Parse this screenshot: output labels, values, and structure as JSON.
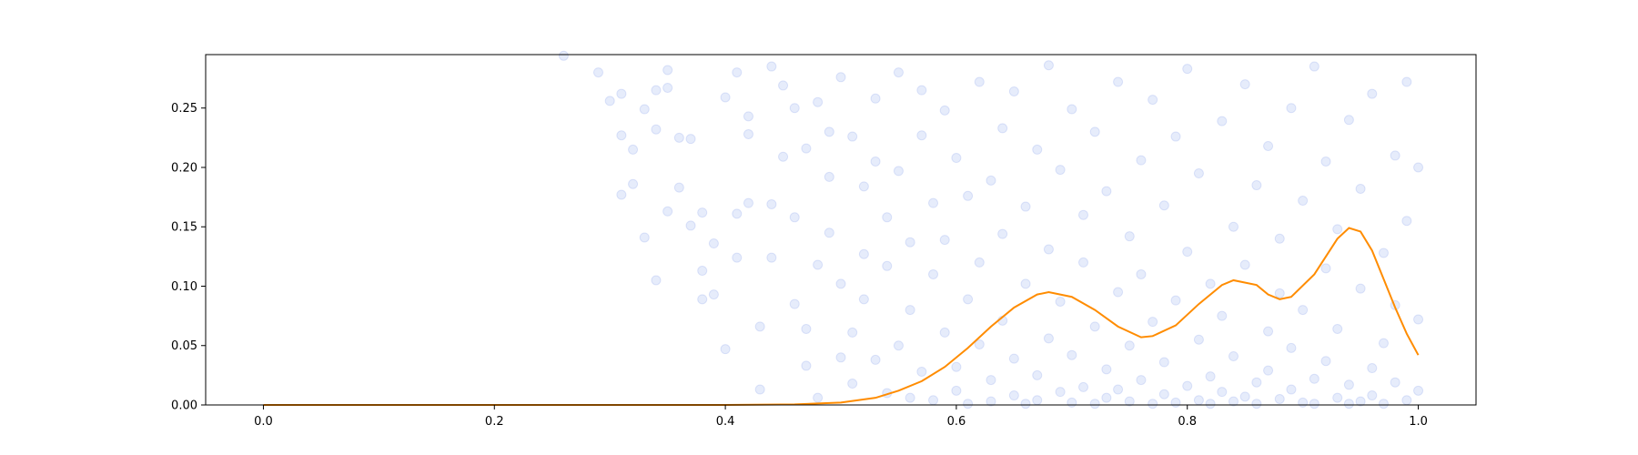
{
  "chart_data": {
    "type": "scatter",
    "xlim": [
      -0.05,
      1.05
    ],
    "ylim": [
      0,
      0.295
    ],
    "xticks": [
      0.0,
      0.2,
      0.4,
      0.6,
      0.8,
      1.0
    ],
    "xtick_labels": [
      "0.0",
      "0.2",
      "0.4",
      "0.6",
      "0.8",
      "1.0"
    ],
    "yticks": [
      0.0,
      0.05,
      0.1,
      0.15,
      0.2,
      0.25
    ],
    "ytick_labels": [
      "0.00",
      "0.05",
      "0.10",
      "0.15",
      "0.20",
      "0.25"
    ],
    "grid": false,
    "colors": {
      "scatter": "#4169e1",
      "line": "#ff8c00",
      "axes": "#000000"
    },
    "scatter_opacity": 0.13,
    "series": [
      {
        "type": "scatter",
        "points": [
          [
            0.26,
            0.294
          ],
          [
            0.29,
            0.28
          ],
          [
            0.3,
            0.256
          ],
          [
            0.31,
            0.262
          ],
          [
            0.31,
            0.177
          ],
          [
            0.31,
            0.227
          ],
          [
            0.32,
            0.215
          ],
          [
            0.32,
            0.186
          ],
          [
            0.33,
            0.141
          ],
          [
            0.33,
            0.249
          ],
          [
            0.34,
            0.232
          ],
          [
            0.34,
            0.265
          ],
          [
            0.34,
            0.105
          ],
          [
            0.35,
            0.267
          ],
          [
            0.35,
            0.163
          ],
          [
            0.35,
            0.282
          ],
          [
            0.36,
            0.225
          ],
          [
            0.36,
            0.183
          ],
          [
            0.37,
            0.151
          ],
          [
            0.37,
            0.224
          ],
          [
            0.38,
            0.162
          ],
          [
            0.38,
            0.113
          ],
          [
            0.38,
            0.089
          ],
          [
            0.39,
            0.093
          ],
          [
            0.39,
            0.136
          ],
          [
            0.4,
            0.047
          ],
          [
            0.4,
            0.259
          ],
          [
            0.41,
            0.124
          ],
          [
            0.41,
            0.161
          ],
          [
            0.41,
            0.28
          ],
          [
            0.42,
            0.17
          ],
          [
            0.42,
            0.243
          ],
          [
            0.42,
            0.228
          ],
          [
            0.43,
            0.013
          ],
          [
            0.43,
            0.066
          ],
          [
            0.44,
            0.124
          ],
          [
            0.44,
            0.285
          ],
          [
            0.44,
            0.169
          ],
          [
            0.45,
            0.269
          ],
          [
            0.45,
            0.209
          ],
          [
            0.46,
            0.085
          ],
          [
            0.46,
            0.25
          ],
          [
            0.46,
            0.158
          ],
          [
            0.47,
            0.033
          ],
          [
            0.47,
            0.064
          ],
          [
            0.47,
            0.216
          ],
          [
            0.48,
            0.255
          ],
          [
            0.48,
            0.118
          ],
          [
            0.48,
            0.006
          ],
          [
            0.49,
            0.145
          ],
          [
            0.49,
            0.23
          ],
          [
            0.49,
            0.192
          ],
          [
            0.5,
            0.102
          ],
          [
            0.5,
            0.04
          ],
          [
            0.5,
            0.276
          ],
          [
            0.51,
            0.061
          ],
          [
            0.51,
            0.018
          ],
          [
            0.51,
            0.226
          ],
          [
            0.52,
            0.127
          ],
          [
            0.52,
            0.184
          ],
          [
            0.52,
            0.089
          ],
          [
            0.53,
            0.205
          ],
          [
            0.53,
            0.038
          ],
          [
            0.53,
            0.258
          ],
          [
            0.54,
            0.01
          ],
          [
            0.54,
            0.158
          ],
          [
            0.54,
            0.117
          ],
          [
            0.55,
            0.28
          ],
          [
            0.55,
            0.05
          ],
          [
            0.55,
            0.197
          ],
          [
            0.56,
            0.08
          ],
          [
            0.56,
            0.006
          ],
          [
            0.56,
            0.137
          ],
          [
            0.57,
            0.227
          ],
          [
            0.57,
            0.028
          ],
          [
            0.57,
            0.265
          ],
          [
            0.58,
            0.11
          ],
          [
            0.58,
            0.17
          ],
          [
            0.58,
            0.004
          ],
          [
            0.59,
            0.061
          ],
          [
            0.59,
            0.248
          ],
          [
            0.59,
            0.139
          ],
          [
            0.6,
            0.012
          ],
          [
            0.6,
            0.208
          ],
          [
            0.6,
            0.032
          ],
          [
            0.61,
            0.176
          ],
          [
            0.61,
            0.089
          ],
          [
            0.61,
            0.001
          ],
          [
            0.62,
            0.272
          ],
          [
            0.62,
            0.051
          ],
          [
            0.62,
            0.12
          ],
          [
            0.63,
            0.021
          ],
          [
            0.63,
            0.189
          ],
          [
            0.63,
            0.003
          ],
          [
            0.64,
            0.233
          ],
          [
            0.64,
            0.071
          ],
          [
            0.64,
            0.144
          ],
          [
            0.65,
            0.008
          ],
          [
            0.65,
            0.039
          ],
          [
            0.65,
            0.264
          ],
          [
            0.66,
            0.102
          ],
          [
            0.66,
            0.001
          ],
          [
            0.66,
            0.167
          ],
          [
            0.67,
            0.025
          ],
          [
            0.67,
            0.215
          ],
          [
            0.67,
            0.004
          ],
          [
            0.68,
            0.056
          ],
          [
            0.68,
            0.131
          ],
          [
            0.68,
            0.286
          ],
          [
            0.69,
            0.011
          ],
          [
            0.69,
            0.087
          ],
          [
            0.69,
            0.198
          ],
          [
            0.7,
            0.002
          ],
          [
            0.7,
            0.042
          ],
          [
            0.7,
            0.249
          ],
          [
            0.71,
            0.12
          ],
          [
            0.71,
            0.015
          ],
          [
            0.71,
            0.16
          ],
          [
            0.72,
            0.001
          ],
          [
            0.72,
            0.066
          ],
          [
            0.72,
            0.23
          ],
          [
            0.73,
            0.03
          ],
          [
            0.73,
            0.18
          ],
          [
            0.73,
            0.006
          ],
          [
            0.74,
            0.095
          ],
          [
            0.74,
            0.272
          ],
          [
            0.74,
            0.013
          ],
          [
            0.75,
            0.142
          ],
          [
            0.75,
            0.003
          ],
          [
            0.75,
            0.05
          ],
          [
            0.76,
            0.206
          ],
          [
            0.76,
            0.021
          ],
          [
            0.76,
            0.11
          ],
          [
            0.77,
            0.001
          ],
          [
            0.77,
            0.257
          ],
          [
            0.77,
            0.07
          ],
          [
            0.78,
            0.009
          ],
          [
            0.78,
            0.168
          ],
          [
            0.78,
            0.036
          ],
          [
            0.79,
            0.226
          ],
          [
            0.79,
            0.002
          ],
          [
            0.79,
            0.088
          ],
          [
            0.8,
            0.129
          ],
          [
            0.8,
            0.016
          ],
          [
            0.8,
            0.283
          ],
          [
            0.81,
            0.004
          ],
          [
            0.81,
            0.055
          ],
          [
            0.81,
            0.195
          ],
          [
            0.82,
            0.024
          ],
          [
            0.82,
            0.102
          ],
          [
            0.82,
            0.001
          ],
          [
            0.83,
            0.239
          ],
          [
            0.83,
            0.075
          ],
          [
            0.83,
            0.011
          ],
          [
            0.84,
            0.15
          ],
          [
            0.84,
            0.003
          ],
          [
            0.84,
            0.041
          ],
          [
            0.85,
            0.27
          ],
          [
            0.85,
            0.118
          ],
          [
            0.85,
            0.007
          ],
          [
            0.86,
            0.019
          ],
          [
            0.86,
            0.185
          ],
          [
            0.86,
            0.001
          ],
          [
            0.87,
            0.062
          ],
          [
            0.87,
            0.218
          ],
          [
            0.87,
            0.029
          ],
          [
            0.88,
            0.005
          ],
          [
            0.88,
            0.14
          ],
          [
            0.88,
            0.094
          ],
          [
            0.89,
            0.25
          ],
          [
            0.89,
            0.013
          ],
          [
            0.89,
            0.048
          ],
          [
            0.9,
            0.002
          ],
          [
            0.9,
            0.172
          ],
          [
            0.9,
            0.08
          ],
          [
            0.91,
            0.022
          ],
          [
            0.91,
            0.285
          ],
          [
            0.91,
            0.001
          ],
          [
            0.92,
            0.115
          ],
          [
            0.92,
            0.037
          ],
          [
            0.92,
            0.205
          ],
          [
            0.93,
            0.006
          ],
          [
            0.93,
            0.148
          ],
          [
            0.93,
            0.064
          ],
          [
            0.94,
            0.001
          ],
          [
            0.94,
            0.24
          ],
          [
            0.94,
            0.017
          ],
          [
            0.95,
            0.098
          ],
          [
            0.95,
            0.003
          ],
          [
            0.95,
            0.182
          ],
          [
            0.96,
            0.031
          ],
          [
            0.96,
            0.262
          ],
          [
            0.96,
            0.008
          ],
          [
            0.97,
            0.128
          ],
          [
            0.97,
            0.052
          ],
          [
            0.97,
            0.001
          ],
          [
            0.98,
            0.21
          ],
          [
            0.98,
            0.019
          ],
          [
            0.98,
            0.084
          ],
          [
            0.99,
            0.004
          ],
          [
            0.99,
            0.155
          ],
          [
            0.99,
            0.272
          ],
          [
            1.0,
            0.072
          ],
          [
            1.0,
            0.012
          ],
          [
            1.0,
            0.2
          ]
        ]
      },
      {
        "type": "line",
        "points": [
          [
            0.0,
            0.0
          ],
          [
            0.4,
            0.0
          ],
          [
            0.46,
            0.0005
          ],
          [
            0.5,
            0.002
          ],
          [
            0.53,
            0.006
          ],
          [
            0.55,
            0.012
          ],
          [
            0.57,
            0.02
          ],
          [
            0.59,
            0.032
          ],
          [
            0.61,
            0.048
          ],
          [
            0.63,
            0.066
          ],
          [
            0.65,
            0.082
          ],
          [
            0.67,
            0.093
          ],
          [
            0.68,
            0.095
          ],
          [
            0.7,
            0.091
          ],
          [
            0.72,
            0.08
          ],
          [
            0.74,
            0.066
          ],
          [
            0.76,
            0.057
          ],
          [
            0.77,
            0.058
          ],
          [
            0.79,
            0.067
          ],
          [
            0.81,
            0.085
          ],
          [
            0.83,
            0.101
          ],
          [
            0.84,
            0.105
          ],
          [
            0.86,
            0.101
          ],
          [
            0.87,
            0.093
          ],
          [
            0.88,
            0.089
          ],
          [
            0.89,
            0.091
          ],
          [
            0.91,
            0.11
          ],
          [
            0.93,
            0.14
          ],
          [
            0.94,
            0.149
          ],
          [
            0.95,
            0.146
          ],
          [
            0.96,
            0.13
          ],
          [
            0.97,
            0.106
          ],
          [
            0.98,
            0.082
          ],
          [
            0.99,
            0.06
          ],
          [
            1.0,
            0.042
          ]
        ]
      }
    ]
  }
}
